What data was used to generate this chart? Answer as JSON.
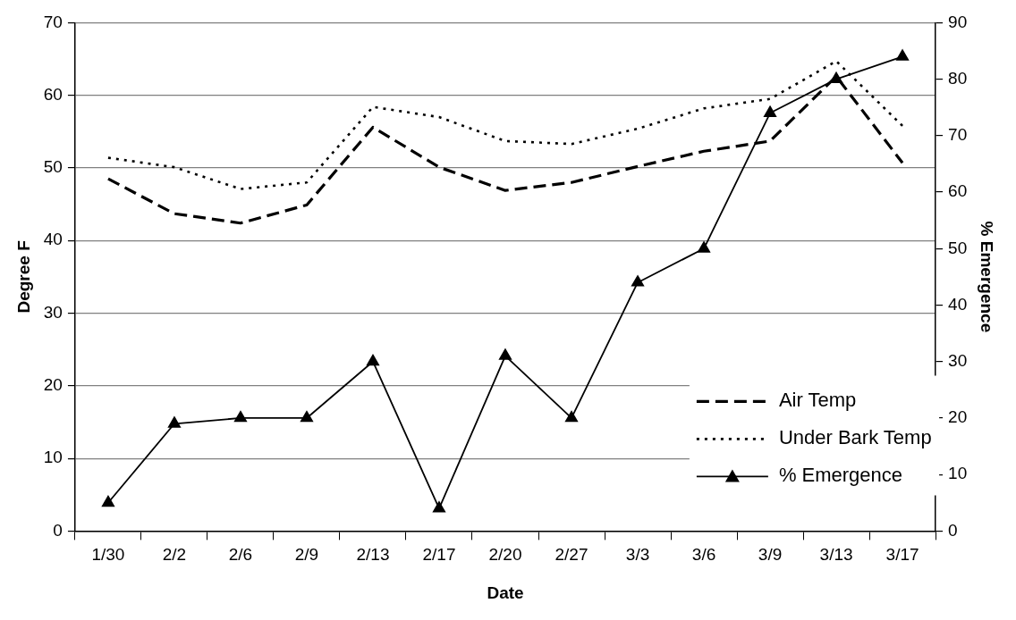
{
  "chart_data": {
    "type": "line",
    "xlabel": "Date",
    "ylabel": "Degree F",
    "y2label": "% Emergence",
    "categories": [
      "1/30",
      "2/2",
      "2/6",
      "2/9",
      "2/13",
      "2/17",
      "2/20",
      "2/27",
      "3/3",
      "3/6",
      "3/9",
      "3/13",
      "3/17"
    ],
    "series": [
      {
        "name": "Air Temp",
        "color": "#000000",
        "line_style": "dashed",
        "marker": "none",
        "values": [
          48.5,
          43.7,
          42.4,
          44.9,
          55.6,
          50.1,
          46.9,
          48.0,
          50.2,
          52.3,
          53.7,
          62.6,
          50.7
        ]
      },
      {
        "name": "Under Bark Temp",
        "color": "#000000",
        "line_style": "dotted",
        "marker": "none",
        "values": [
          51.4,
          50.1,
          47.1,
          48.0,
          58.4,
          57.0,
          53.7,
          53.3,
          55.4,
          58.2,
          59.5,
          64.7,
          55.8
        ]
      },
      {
        "name": "% Emergence",
        "color": "#000000",
        "line_style": "solid",
        "marker": "triangle",
        "axis": "y2",
        "values": [
          5,
          19,
          20,
          20,
          30,
          4,
          31,
          20,
          44,
          50,
          74,
          80,
          84
        ]
      }
    ],
    "ylim": [
      0,
      70
    ],
    "yticks": [
      0,
      10,
      20,
      30,
      40,
      50,
      60,
      70
    ],
    "y2lim": [
      0,
      90
    ],
    "y2ticks": [
      0,
      10,
      20,
      30,
      40,
      50,
      60,
      70,
      80,
      90
    ],
    "grid": "y",
    "legend": "bottom right"
  }
}
